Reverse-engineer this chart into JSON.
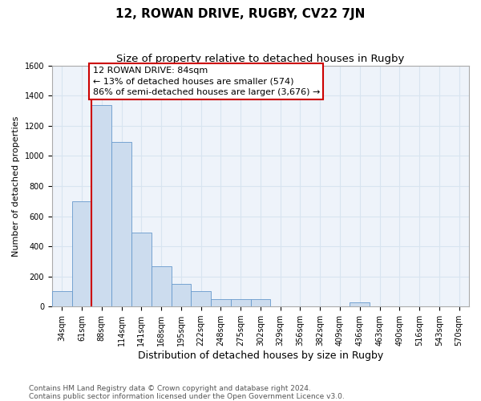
{
  "title": "12, ROWAN DRIVE, RUGBY, CV22 7JN",
  "subtitle": "Size of property relative to detached houses in Rugby",
  "xlabel": "Distribution of detached houses by size in Rugby",
  "ylabel": "Number of detached properties",
  "bar_labels": [
    "34sqm",
    "61sqm",
    "88sqm",
    "114sqm",
    "141sqm",
    "168sqm",
    "195sqm",
    "222sqm",
    "248sqm",
    "275sqm",
    "302sqm",
    "329sqm",
    "356sqm",
    "382sqm",
    "409sqm",
    "436sqm",
    "463sqm",
    "490sqm",
    "516sqm",
    "543sqm",
    "570sqm"
  ],
  "bar_values": [
    100,
    700,
    1340,
    1090,
    490,
    270,
    150,
    100,
    50,
    50,
    50,
    0,
    0,
    0,
    0,
    30,
    0,
    0,
    0,
    0,
    0
  ],
  "bar_color": "#ccdcee",
  "bar_edge_color": "#6699cc",
  "vline_color": "#cc0000",
  "box_edge_color": "#cc0000",
  "annotation_line1": "12 ROWAN DRIVE: 84sqm",
  "annotation_line2": "← 13% of detached houses are smaller (574)",
  "annotation_line3": "86% of semi-detached houses are larger (3,676) →",
  "ylim_max": 1600,
  "yticks": [
    0,
    200,
    400,
    600,
    800,
    1000,
    1200,
    1400,
    1600
  ],
  "grid_color": "#d8e4f0",
  "plot_bg_color": "#eef3fa",
  "footer_text": "Contains HM Land Registry data © Crown copyright and database right 2024.\nContains public sector information licensed under the Open Government Licence v3.0.",
  "title_fontsize": 11,
  "subtitle_fontsize": 9.5,
  "xlabel_fontsize": 9,
  "ylabel_fontsize": 8,
  "tick_fontsize": 7,
  "annotation_fontsize": 8,
  "footer_fontsize": 6.5
}
